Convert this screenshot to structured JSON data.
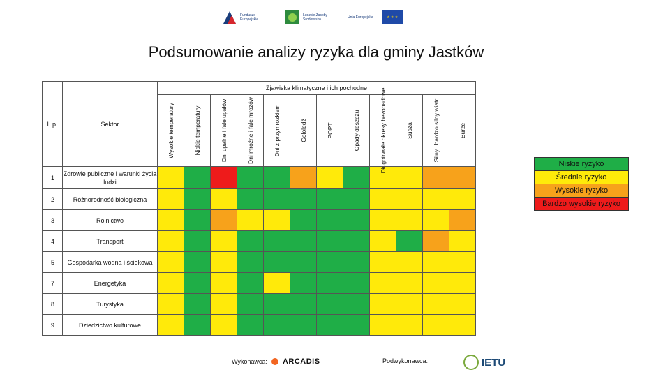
{
  "logos": [
    {
      "text": "Fundusze Europejskie"
    },
    {
      "text": "Ludzkie Zasoby Środowisko"
    },
    {
      "text": "Unia Europejska"
    }
  ],
  "title": "Podsumowanie analizy ryzyka dla gminy Jastków",
  "table": {
    "header_lp": "L.p.",
    "header_sector": "Sektor",
    "group_header": "Zjawiska klimatyczne i ich pochodne",
    "hazards": [
      "Wysokie temperatury",
      "Niskie temperatury",
      "Dni upalne i fale upałów",
      "Dni mroźne i fale mrozów",
      "Dni z przymrozkiem",
      "Gołoledź",
      "POPT",
      "Opady deszczu",
      "Długotrwałe okresy bezopadowe",
      "Susza",
      "Silny i bardzo silny wiatr",
      "Burze"
    ],
    "rows": [
      {
        "num": "1",
        "sector": "Zdrowie publiczne i warunki życia ludzi",
        "risk": [
          "Y",
          "Z",
          "R",
          "Z",
          "Z",
          "O",
          "Y",
          "Z",
          "Y",
          "Y",
          "O",
          "O"
        ]
      },
      {
        "num": "2",
        "sector": "Różnorodność biologiczna",
        "risk": [
          "Y",
          "Z",
          "Y",
          "Z",
          "Z",
          "Z",
          "Z",
          "Z",
          "Y",
          "Y",
          "Y",
          "Y"
        ]
      },
      {
        "num": "3",
        "sector": "Rolnictwo",
        "risk": [
          "Y",
          "Z",
          "O",
          "Y",
          "Y",
          "Z",
          "Z",
          "Z",
          "Y",
          "Y",
          "Y",
          "O"
        ]
      },
      {
        "num": "4",
        "sector": "Transport",
        "risk": [
          "Y",
          "Z",
          "Y",
          "Z",
          "Z",
          "Z",
          "Z",
          "Z",
          "Y",
          "Z",
          "O",
          "Y"
        ]
      },
      {
        "num": "5",
        "sector": "Gospodarka wodna i ściekowa",
        "risk": [
          "Y",
          "Z",
          "Y",
          "Z",
          "Z",
          "Z",
          "Z",
          "Z",
          "Y",
          "Y",
          "Y",
          "Y"
        ]
      },
      {
        "num": "7",
        "sector": "Energetyka",
        "risk": [
          "Y",
          "Z",
          "Y",
          "Z",
          "Y",
          "Z",
          "Z",
          "Z",
          "Y",
          "Y",
          "Y",
          "Y"
        ]
      },
      {
        "num": "8",
        "sector": "Turystyka",
        "risk": [
          "Y",
          "Z",
          "Y",
          "Z",
          "Z",
          "Z",
          "Z",
          "Z",
          "Y",
          "Y",
          "Y",
          "Y"
        ]
      },
      {
        "num": "9",
        "sector": "Dziedzictwo kulturowe",
        "risk": [
          "Y",
          "Z",
          "Y",
          "Z",
          "Z",
          "Z",
          "Z",
          "Z",
          "Y",
          "Y",
          "Y",
          "Y"
        ]
      }
    ]
  },
  "legend": [
    {
      "label": "Niskie ryzyko",
      "color": "#1fae47"
    },
    {
      "label": "Średnie ryzyko",
      "color": "#ffea0a"
    },
    {
      "label": "Wysokie ryzyko",
      "color": "#f7a21b"
    },
    {
      "label": "Bardzo wysokie ryzyko",
      "color": "#ee1b1b"
    }
  ],
  "footer": {
    "contractor_label": "Wykonawca:",
    "contractor_name": "ARCADIS",
    "subcontractor_label": "Podwykonawca:",
    "subcontractor_name": "IETU"
  }
}
